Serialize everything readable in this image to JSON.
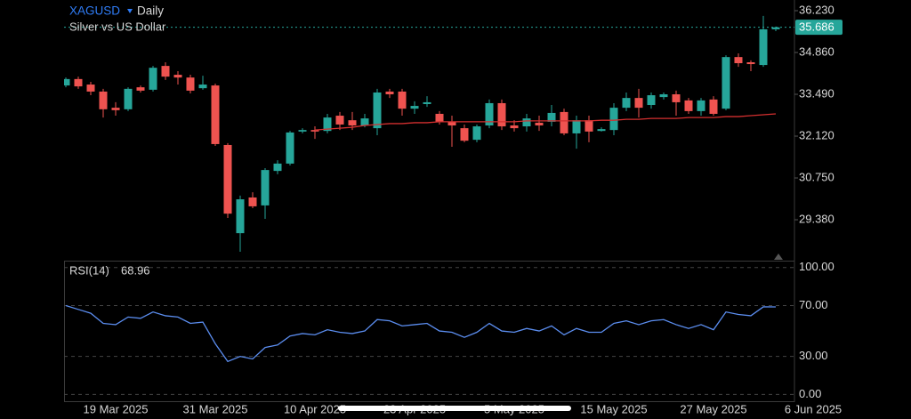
{
  "chart_data": {
    "type": "candlestick",
    "symbol": "XAGUSD",
    "interval": "Daily",
    "subtitle": "Silver vs US Dollar",
    "categories": [
      null,
      null,
      null,
      null,
      "19 Mar 2025",
      null,
      null,
      null,
      null,
      null,
      null,
      null,
      "31 Mar 2025",
      null,
      null,
      null,
      null,
      null,
      null,
      null,
      "10 Apr 2025",
      null,
      null,
      null,
      null,
      null,
      null,
      null,
      "23 Apr 2025",
      null,
      null,
      null,
      null,
      null,
      null,
      null,
      "5 May 2025",
      null,
      null,
      null,
      null,
      null,
      null,
      null,
      "15 May 2025",
      null,
      null,
      null,
      null,
      null,
      null,
      null,
      "27 May 2025",
      null,
      null,
      null,
      null,
      null,
      null,
      null,
      "6 Jun 2025"
    ],
    "open": [
      33.78,
      33.99,
      33.81,
      33.58,
      33.05,
      33.0,
      33.72,
      33.64,
      34.42,
      34.13,
      34.04,
      33.69,
      33.78,
      31.83,
      28.94,
      30.11,
      29.85,
      30.98,
      31.22,
      32.27,
      32.32,
      32.29,
      32.79,
      32.64,
      32.47,
      32.38,
      33.58,
      33.58,
      33.02,
      33.17,
      32.85,
      32.59,
      32.38,
      32.0,
      32.47,
      33.2,
      32.47,
      32.44,
      32.56,
      32.59,
      32.91,
      32.21,
      32.64,
      32.29,
      32.32,
      33.05,
      33.37,
      33.14,
      33.4,
      33.49,
      33.29,
      32.94,
      33.32,
      33.02,
      34.71,
      34.54,
      34.45,
      35.62,
      null,
      null,
      null
    ],
    "high": [
      34.04,
      34.07,
      33.9,
      33.67,
      33.23,
      33.72,
      33.78,
      34.42,
      34.54,
      34.25,
      34.13,
      34.1,
      33.84,
      31.89,
      30.17,
      30.28,
      31.07,
      31.33,
      32.29,
      32.38,
      32.44,
      32.85,
      32.91,
      32.91,
      32.85,
      33.67,
      33.67,
      33.67,
      33.26,
      33.43,
      32.94,
      32.79,
      32.5,
      32.5,
      33.32,
      33.32,
      32.64,
      32.85,
      32.79,
      33.14,
      33.02,
      32.79,
      32.79,
      32.41,
      33.2,
      33.55,
      33.67,
      33.55,
      33.55,
      33.61,
      33.37,
      33.37,
      33.43,
      34.77,
      34.83,
      34.6,
      36.06,
      35.71,
      null,
      null,
      null
    ],
    "low": [
      33.72,
      33.67,
      33.46,
      32.73,
      32.79,
      32.94,
      33.55,
      33.58,
      33.96,
      33.81,
      33.52,
      33.64,
      31.8,
      29.44,
      28.33,
      29.76,
      29.41,
      30.87,
      31.16,
      32.21,
      32.03,
      32.21,
      32.32,
      32.32,
      32.41,
      32.15,
      33.37,
      32.79,
      32.85,
      33.08,
      32.5,
      31.77,
      31.92,
      31.92,
      32.38,
      32.32,
      32.27,
      32.27,
      32.29,
      32.44,
      32.15,
      31.71,
      31.92,
      32.27,
      32.15,
      32.94,
      32.73,
      33.02,
      33.32,
      32.79,
      32.85,
      32.79,
      32.79,
      32.97,
      34.39,
      34.25,
      34.39,
      35.56,
      null,
      null,
      null
    ],
    "close": [
      33.99,
      33.75,
      33.58,
      33.0,
      32.97,
      33.67,
      33.61,
      34.36,
      34.07,
      34.04,
      33.61,
      33.81,
      31.86,
      29.58,
      30.05,
      29.82,
      31.01,
      31.22,
      32.24,
      32.32,
      32.27,
      32.73,
      32.5,
      32.47,
      32.7,
      33.55,
      33.49,
      33.02,
      33.11,
      33.23,
      32.59,
      32.47,
      31.97,
      32.44,
      33.2,
      32.44,
      32.38,
      32.7,
      32.47,
      32.88,
      32.21,
      32.64,
      32.27,
      32.35,
      33.05,
      33.37,
      33.05,
      33.46,
      33.49,
      33.23,
      32.94,
      33.29,
      32.85,
      34.71,
      34.51,
      34.48,
      35.62,
      35.686,
      null,
      null,
      null
    ],
    "ma_values": [
      null,
      null,
      null,
      null,
      null,
      null,
      null,
      null,
      null,
      null,
      null,
      null,
      null,
      null,
      null,
      null,
      null,
      null,
      null,
      null,
      32.32,
      32.35,
      32.38,
      32.41,
      32.47,
      32.5,
      32.53,
      32.53,
      32.56,
      32.56,
      32.59,
      32.59,
      32.59,
      32.59,
      32.59,
      32.59,
      32.59,
      32.62,
      32.62,
      32.62,
      32.62,
      32.62,
      32.62,
      32.64,
      32.64,
      32.67,
      32.67,
      32.7,
      32.7,
      32.7,
      32.73,
      32.73,
      32.73,
      32.76,
      32.76,
      32.79,
      32.82,
      32.85,
      null,
      null,
      null
    ],
    "up_color": "#26a69a",
    "down_color": "#ef5350",
    "ma_color": "#d32f2f",
    "ylim": [
      28.04,
      36.58
    ],
    "yticks": [
      {
        "value": 36.23,
        "label": "36.230"
      },
      {
        "value": 34.86,
        "label": "34.860"
      },
      {
        "value": 33.49,
        "label": "33.490"
      },
      {
        "value": 32.12,
        "label": "32.120"
      },
      {
        "value": 30.75,
        "label": "30.750"
      },
      {
        "value": 29.38,
        "label": "29.380"
      }
    ],
    "rsi": {
      "label": "RSI(14)",
      "color": "#5b8def",
      "values": [
        70,
        67,
        64,
        56,
        55,
        61,
        60,
        65,
        62,
        61,
        56,
        57,
        40,
        26,
        30,
        28,
        37,
        39,
        46,
        48,
        47,
        51,
        49,
        48,
        50,
        59,
        58,
        54,
        55,
        56,
        50,
        49,
        45,
        49,
        56,
        50,
        49,
        52,
        50,
        54,
        47,
        52,
        49,
        49,
        56,
        58,
        55,
        58,
        59,
        55,
        52,
        55,
        51,
        65,
        63,
        62,
        69,
        68.96,
        null,
        null,
        null
      ],
      "ylim": [
        -6,
        104
      ],
      "yticks": [
        {
          "value": 100,
          "label": "100.00"
        },
        {
          "value": 70,
          "label": "70.00"
        },
        {
          "value": 30,
          "label": "30.00"
        },
        {
          "value": 0,
          "label": "0.00"
        }
      ]
    }
  }
}
